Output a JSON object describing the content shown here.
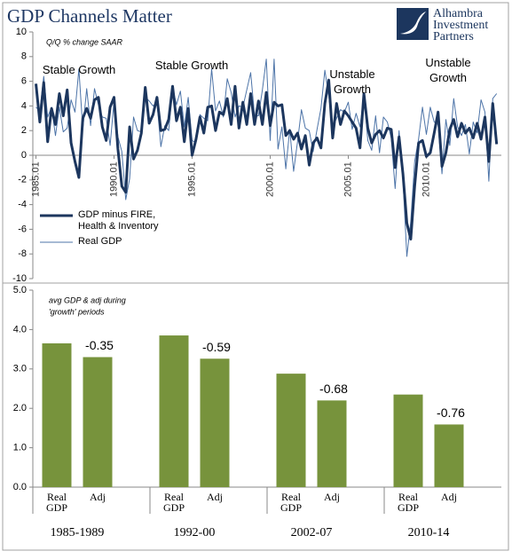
{
  "header": {
    "title": "GDP Channels Matter",
    "logo": "Alhambra Investment Partners"
  },
  "chart_data": [
    {
      "type": "line",
      "y_label": "Q/Q % change SAAR",
      "annotations": [
        "Stable Growth",
        "Stable Growth",
        "Unstable Growth",
        "Unstable Growth"
      ],
      "x": [
        1985,
        1985.25,
        1985.5,
        1985.75,
        1986,
        1986.25,
        1986.5,
        1986.75,
        1987,
        1987.25,
        1987.5,
        1987.75,
        1988,
        1988.25,
        1988.5,
        1988.75,
        1989,
        1989.25,
        1989.5,
        1989.75,
        1990,
        1990.25,
        1990.5,
        1990.75,
        1991,
        1991.25,
        1991.5,
        1991.75,
        1992,
        1992.25,
        1992.5,
        1992.75,
        1993,
        1993.25,
        1993.5,
        1993.75,
        1994,
        1994.25,
        1994.5,
        1994.75,
        1995,
        1995.25,
        1995.5,
        1995.75,
        1996,
        1996.25,
        1996.5,
        1996.75,
        1997,
        1997.25,
        1997.5,
        1997.75,
        1998,
        1998.25,
        1998.5,
        1998.75,
        1999,
        1999.25,
        1999.5,
        1999.75,
        2000,
        2000.25,
        2000.5,
        2000.75,
        2001,
        2001.25,
        2001.5,
        2001.75,
        2002,
        2002.25,
        2002.5,
        2002.75,
        2003,
        2003.25,
        2003.5,
        2003.75,
        2004,
        2004.25,
        2004.5,
        2004.75,
        2005,
        2005.25,
        2005.5,
        2005.75,
        2006,
        2006.25,
        2006.5,
        2006.75,
        2007,
        2007.25,
        2007.5,
        2007.75,
        2008,
        2008.25,
        2008.5,
        2008.75,
        2009,
        2009.25,
        2009.5,
        2009.75,
        2010,
        2010.25,
        2010.5,
        2010.75,
        2011,
        2011.25,
        2011.5,
        2011.75,
        2012,
        2012.25,
        2012.5,
        2012.75,
        2013,
        2013.25,
        2013.5,
        2013.75,
        2014,
        2014.25,
        2014.5
      ],
      "series": [
        {
          "name": "GDP minus FIRE, Health & Inventory",
          "color": "#1c365e",
          "width": 3,
          "values": [
            5.8,
            2.7,
            5.9,
            1.1,
            3.8,
            2.5,
            5.0,
            3.2,
            5.3,
            1.0,
            -0.5,
            -1.8,
            3.0,
            3.8,
            3.0,
            4.5,
            4.7,
            2.3,
            1.2,
            3.9,
            4.7,
            0.5,
            -2.5,
            -3.0,
            2.3,
            -0.3,
            0.4,
            1.8,
            5.5,
            2.6,
            3.3,
            4.7,
            2.0,
            2.1,
            2.9,
            5.6,
            2.8,
            3.9,
            1.1,
            3.8,
            0.0,
            1.3,
            3.1,
            1.8,
            3.9,
            4.0,
            2.0,
            3.5,
            3.3,
            4.6,
            2.5,
            5.6,
            2.2,
            4.3,
            2.5,
            5.0,
            2.5,
            4.4,
            2.5,
            5.1,
            2.4,
            4.3,
            4.0,
            4.1,
            1.6,
            2.0,
            1.3,
            1.8,
            0.5,
            1.6,
            -0.8,
            1.0,
            1.4,
            0.6,
            4.2,
            6.1,
            1.4,
            4.2,
            2.5,
            3.6,
            3.2,
            2.7,
            2.2,
            0.6,
            5.0,
            2.2,
            1.0,
            1.7,
            2.0,
            1.4,
            2.2,
            2.1,
            -1.0,
            1.5,
            -1.5,
            -5.5,
            -6.8,
            -2.5,
            1.0,
            1.2,
            -0.1,
            0.2,
            1.8,
            3.5,
            -0.9,
            0.2,
            2.1,
            2.9,
            1.5,
            2.6,
            1.8,
            2.2,
            1.4,
            2.6,
            1.3,
            3.1,
            -0.5,
            4.2,
            0.9
          ]
        },
        {
          "name": "Real GDP",
          "color": "#4d74a8",
          "width": 1,
          "values": [
            3.9,
            3.6,
            6.4,
            3.1,
            3.9,
            1.6,
            3.9,
            1.9,
            2.2,
            4.5,
            3.5,
            7.0,
            2.1,
            5.4,
            2.4,
            5.4,
            4.1,
            3.1,
            3.0,
            0.8,
            4.4,
            1.5,
            0.3,
            -3.6,
            -1.9,
            3.1,
            2.0,
            1.9,
            4.7,
            4.4,
            4.0,
            4.3,
            0.7,
            2.4,
            2.0,
            5.5,
            4.1,
            5.2,
            2.3,
            4.7,
            1.2,
            1.0,
            3.3,
            3.0,
            2.8,
            7.0,
            3.6,
            4.4,
            3.1,
            6.2,
            5.1,
            3.1,
            4.0,
            3.9,
            5.3,
            6.7,
            3.2,
            3.2,
            5.3,
            7.8,
            1.2,
            7.8,
            0.5,
            2.3,
            -1.1,
            2.1,
            -1.3,
            1.1,
            3.7,
            2.2,
            2.0,
            0.3,
            2.1,
            3.8,
            6.9,
            4.8,
            2.3,
            3.0,
            3.7,
            3.5,
            4.3,
            2.1,
            3.4,
            2.3,
            4.9,
            1.2,
            0.4,
            3.2,
            0.2,
            3.1,
            2.7,
            1.4,
            -2.7,
            2.0,
            -1.9,
            -8.2,
            -5.4,
            -0.5,
            1.3,
            3.9,
            1.7,
            3.9,
            2.7,
            2.5,
            -1.5,
            2.9,
            0.8,
            4.6,
            2.3,
            1.6,
            2.5,
            0.1,
            2.7,
            1.8,
            4.5,
            3.5,
            -2.1,
            4.6,
            5.0
          ]
        }
      ],
      "xlim": [
        1984.8,
        2014.8
      ],
      "xticks": [
        {
          "value": 1985,
          "label": "1985.01"
        },
        {
          "value": 1990,
          "label": "1990.01"
        },
        {
          "value": 1995,
          "label": "1995.01"
        },
        {
          "value": 2000,
          "label": "2000.01"
        },
        {
          "value": 2005,
          "label": "2005.01"
        },
        {
          "value": 2010,
          "label": "2010.01"
        }
      ],
      "ylim": [
        -10,
        10
      ],
      "yticks": [
        10,
        8,
        6,
        4,
        2,
        0,
        -2,
        -4,
        -6,
        -8,
        -10
      ]
    },
    {
      "type": "bar",
      "subtitle": [
        "avg GDP & adj during",
        "'growth' periods"
      ],
      "categories": [
        "1985-1989",
        "1992-00",
        "2002-07",
        "2010-14"
      ],
      "series": [
        {
          "name": "Real GDP",
          "color": "#77933c",
          "values": [
            3.65,
            3.85,
            2.88,
            2.35
          ]
        },
        {
          "name": "Adj",
          "color": "#77933c",
          "values": [
            3.3,
            3.26,
            2.2,
            1.59
          ]
        }
      ],
      "adj_differences": [
        -0.35,
        -0.59,
        -0.68,
        -0.76
      ],
      "ylim": [
        0,
        5
      ],
      "yticks": [
        {
          "value": 0,
          "label": "0.0"
        },
        {
          "value": 1,
          "label": "1.0"
        },
        {
          "value": 2,
          "label": "2.0"
        },
        {
          "value": 3,
          "label": "3.0"
        },
        {
          "value": 4,
          "label": "4.0"
        },
        {
          "value": 5,
          "label": "5.0"
        }
      ]
    }
  ]
}
